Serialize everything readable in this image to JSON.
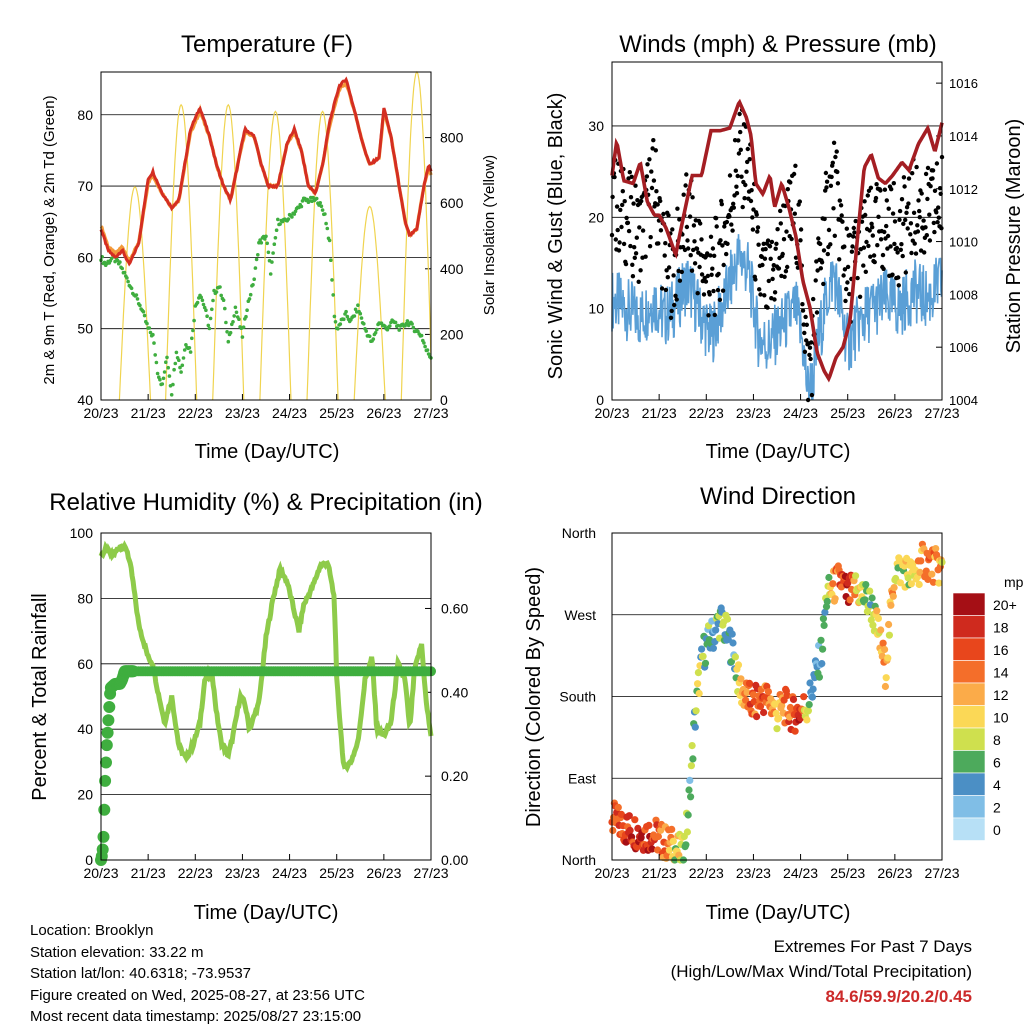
{
  "panels": {
    "temperature": {
      "title": "Temperature (F)",
      "xlabel": "Time (Day/UTC)",
      "ylabel_left": "2m & 9m T (Red, Orange) & 2m Td (Green)",
      "ylabel_right": "Solar Insolation (Yellow)"
    },
    "winds": {
      "title": "Winds (mph) & Pressure (mb)",
      "xlabel": "Time (Day/UTC)",
      "ylabel_left": "Sonic Wind & Gust (Blue, Black)",
      "ylabel_right": "Station Pressure (Maroon)"
    },
    "humidity": {
      "title": "Relative Humidity (%) & Precipitation (in)",
      "xlabel": "Time (Day/UTC)",
      "ylabel_left": "Percent & Total Rainfall"
    },
    "direction": {
      "title": "Wind Direction",
      "xlabel": "Time (Day/UTC)",
      "ylabel_left": "Direction (Colored By Speed)",
      "legend_title": "mph"
    }
  },
  "info": {
    "location": "Location: Brooklyn",
    "elevation": "Station elevation: 33.22 m",
    "latlon": "Station lat/lon: 40.6318; -73.9537",
    "created": "Figure created on Wed, 2025-08-27, at 23:56 UTC",
    "recent": "Most recent data timestamp: 2025/08/27 23:15:00"
  },
  "extremes": {
    "line1": "Extremes For Past 7 Days",
    "line2": "(High/Low/Max Wind/Total Precipitation)",
    "values": "84.6/59.9/20.2/0.45",
    "value_color": "#cc2a2a"
  },
  "chart_data": [
    {
      "type": "line",
      "id": "temperature",
      "title": "Temperature (F)",
      "xlabel": "Time (Day/UTC)",
      "x_ticks": [
        "20/23",
        "21/23",
        "22/23",
        "23/23",
        "24/23",
        "25/23",
        "26/23",
        "27/23"
      ],
      "xlim": [
        0,
        7
      ],
      "ylim": [
        40,
        86
      ],
      "y_ticks": [
        40,
        50,
        60,
        70,
        80
      ],
      "y2lim": [
        0,
        1000
      ],
      "y2_ticks": [
        0,
        200,
        400,
        600,
        800
      ],
      "grid": true,
      "series": [
        {
          "role": "t2m",
          "color": "#d42e22",
          "x": [
            0,
            0.15,
            0.3,
            0.45,
            0.6,
            0.8,
            1.0,
            1.1,
            1.3,
            1.5,
            1.65,
            1.9,
            2.1,
            2.3,
            2.45,
            2.6,
            2.75,
            2.9,
            3.05,
            3.25,
            3.4,
            3.55,
            3.75,
            3.95,
            4.1,
            4.25,
            4.4,
            4.55,
            4.7,
            4.85,
            5.05,
            5.2,
            5.4,
            5.55,
            5.7,
            5.9,
            6.0,
            6.15,
            6.3,
            6.45,
            6.55,
            6.7,
            6.85,
            6.95,
            7.0
          ],
          "values": [
            64,
            61,
            60,
            61,
            59,
            62,
            71,
            72,
            69,
            67,
            68,
            78,
            81,
            77,
            73,
            70,
            68,
            73,
            78,
            77,
            73,
            70,
            70,
            76,
            78,
            75,
            70,
            69,
            73,
            79,
            84,
            85,
            80,
            76,
            73,
            74,
            81,
            77,
            71,
            65,
            63,
            64,
            70,
            73,
            72
          ]
        },
        {
          "role": "t9m",
          "color": "#f39a3a",
          "x": [
            0,
            0.15,
            0.3,
            0.45,
            0.6,
            0.8,
            1.0,
            1.1,
            1.3,
            1.5,
            1.65,
            1.9,
            2.1,
            2.3,
            2.45,
            2.6,
            2.75,
            2.9,
            3.05,
            3.25,
            3.4,
            3.55,
            3.75,
            3.95,
            4.1,
            4.25,
            4.4,
            4.55,
            4.7,
            4.85,
            5.05,
            5.2,
            5.4,
            5.55,
            5.7,
            5.9,
            6.0,
            6.15,
            6.3,
            6.45,
            6.55,
            6.7,
            6.85,
            6.95,
            7.0
          ],
          "values": [
            64.5,
            61.5,
            60.5,
            61.5,
            59.5,
            62,
            70.5,
            71.5,
            69,
            67,
            68,
            77.5,
            80.5,
            77,
            73,
            70,
            68,
            73,
            77.5,
            77,
            73,
            70,
            70,
            76,
            77.5,
            75,
            70,
            69,
            73,
            78.5,
            83.5,
            84.5,
            80,
            76,
            73,
            74,
            80.5,
            77,
            71,
            65,
            63,
            64,
            70,
            72.5,
            71.5
          ]
        },
        {
          "role": "td2m",
          "color": "#3fae3f",
          "x": [
            0,
            0.1,
            0.25,
            0.4,
            0.55,
            0.7,
            0.85,
            1.0,
            1.1,
            1.2,
            1.3,
            1.4,
            1.5,
            1.6,
            1.7,
            1.8,
            1.9,
            2.0,
            2.1,
            2.2,
            2.3,
            2.4,
            2.5,
            2.6,
            2.7,
            2.85,
            3.0,
            3.1,
            3.25,
            3.35,
            3.5,
            3.6,
            3.75,
            3.9,
            4.05,
            4.2,
            4.3,
            4.45,
            4.6,
            4.75,
            4.85,
            4.95,
            5.0,
            5.2,
            5.3,
            5.45,
            5.6,
            5.75,
            5.9,
            6.05,
            6.2,
            6.35,
            6.5,
            6.65,
            6.8,
            6.9,
            7.0
          ],
          "values": [
            60,
            59,
            60,
            59,
            57,
            55,
            53,
            50,
            49,
            44,
            42,
            46,
            41,
            47,
            44,
            48,
            47,
            53,
            55,
            53,
            50,
            55,
            56,
            54,
            48,
            53,
            49,
            53,
            57,
            62,
            63,
            58,
            65,
            65,
            66,
            67,
            68,
            68,
            68,
            66,
            62,
            52,
            50,
            52,
            51,
            53,
            50,
            48,
            51,
            50,
            51,
            50,
            51,
            50,
            49,
            47,
            46
          ]
        },
        {
          "role": "solar",
          "color": "#f0d450",
          "axis": "right",
          "days_peak": [
            650,
            900,
            900,
            880,
            880,
            590,
            1000
          ],
          "peak_time": [
            0.72,
            1.7,
            2.7,
            3.7,
            4.7,
            5.7,
            6.7
          ]
        }
      ]
    },
    {
      "type": "scatter",
      "id": "winds",
      "title": "Winds (mph) & Pressure (mb)",
      "xlabel": "Time (Day/UTC)",
      "x_ticks": [
        "20/23",
        "21/23",
        "22/23",
        "23/23",
        "24/23",
        "25/23",
        "26/23",
        "27/23"
      ],
      "xlim": [
        0,
        7
      ],
      "ylim": [
        0,
        37
      ],
      "y_ticks": [
        0,
        10,
        20,
        30
      ],
      "y2lim": [
        1004,
        1016.8
      ],
      "y2_ticks": [
        1004,
        1006,
        1008,
        1010,
        1012,
        1014,
        1016
      ],
      "grid": true,
      "series": [
        {
          "role": "wind",
          "color": "#5a9fd6",
          "x": [
            0,
            0.3,
            0.6,
            0.9,
            1.1,
            1.3,
            1.6,
            1.9,
            2.1,
            2.4,
            2.7,
            2.9,
            3.1,
            3.3,
            3.6,
            3.9,
            4.05,
            4.15,
            4.25,
            4.4,
            4.55,
            4.7,
            4.85,
            5.0,
            5.2,
            5.5,
            5.8,
            6.1,
            6.4,
            6.7,
            7.0
          ],
          "values": [
            11,
            10,
            9,
            11,
            9,
            10,
            13,
            9,
            7,
            11,
            16,
            14,
            7,
            6,
            8,
            10,
            6,
            1,
            2,
            7,
            11,
            14,
            10,
            6,
            8,
            10,
            11,
            10,
            12,
            11,
            13
          ]
        },
        {
          "role": "gust",
          "color": "#000000",
          "x": [
            0,
            0.3,
            0.6,
            0.9,
            1.1,
            1.3,
            1.6,
            1.9,
            2.1,
            2.4,
            2.7,
            2.9,
            3.1,
            3.3,
            3.6,
            3.9,
            4.05,
            4.15,
            4.25,
            4.4,
            4.55,
            4.7,
            4.85,
            5.0,
            5.2,
            5.5,
            5.8,
            6.1,
            6.4,
            6.7,
            7.0
          ],
          "values": [
            22,
            20,
            18,
            24,
            16,
            14,
            20,
            15,
            13,
            18,
            27,
            25,
            14,
            12,
            17,
            21,
            13,
            3,
            6,
            15,
            20,
            24,
            19,
            13,
            16,
            18,
            19,
            18,
            21,
            20,
            22
          ]
        },
        {
          "role": "pressure",
          "color": "#a41e23",
          "axis": "right",
          "x": [
            0,
            0.1,
            0.25,
            0.45,
            0.6,
            0.75,
            0.9,
            1.0,
            1.15,
            1.35,
            1.5,
            1.7,
            1.9,
            2.1,
            2.3,
            2.5,
            2.7,
            2.85,
            2.95,
            3.05,
            3.2,
            3.35,
            3.45,
            3.6,
            3.75,
            3.9,
            4.05,
            4.2,
            4.35,
            4.5,
            4.6,
            4.75,
            4.9,
            5.05,
            5.2,
            5.35,
            5.5,
            5.65,
            5.8,
            5.95,
            6.15,
            6.3,
            6.5,
            6.7,
            6.85,
            7.0
          ],
          "values": [
            1012.5,
            1013.8,
            1012.3,
            1012.2,
            1013,
            1011.5,
            1011,
            1011,
            1010.5,
            1009.5,
            1010.8,
            1012.5,
            1012.5,
            1014.2,
            1014.2,
            1014.3,
            1015.3,
            1014.7,
            1014,
            1012.2,
            1011.8,
            1012.5,
            1011.3,
            1012.2,
            1011.3,
            1010.2,
            1008.5,
            1007.5,
            1005.8,
            1005.1,
            1004.8,
            1005.6,
            1006,
            1007,
            1010,
            1012.8,
            1013.3,
            1012.4,
            1012.2,
            1012.5,
            1013,
            1012.7,
            1013.7,
            1014.3,
            1013.4,
            1014.5
          ]
        }
      ]
    },
    {
      "type": "line",
      "id": "humidity",
      "title": "Relative Humidity (%) & Precipitation (in)",
      "xlabel": "Time (Day/UTC)",
      "x_ticks": [
        "20/23",
        "21/23",
        "22/23",
        "23/23",
        "24/23",
        "25/23",
        "26/23",
        "27/23"
      ],
      "xlim": [
        0,
        7
      ],
      "ylim": [
        0,
        100
      ],
      "y_ticks": [
        0,
        20,
        40,
        60,
        80,
        100
      ],
      "y2lim": [
        0,
        0.78
      ],
      "y2_ticks": [
        "0.00",
        "0.20",
        "0.40",
        "0.60"
      ],
      "grid": true,
      "series": [
        {
          "role": "rh",
          "color": "#8ecb4a",
          "x": [
            0,
            0.1,
            0.25,
            0.4,
            0.55,
            0.65,
            0.8,
            1.0,
            1.1,
            1.2,
            1.35,
            1.5,
            1.65,
            1.8,
            1.95,
            2.1,
            2.2,
            2.35,
            2.45,
            2.55,
            2.7,
            2.8,
            2.95,
            3.05,
            3.15,
            3.35,
            3.5,
            3.65,
            3.8,
            3.95,
            4.1,
            4.2,
            4.3,
            4.5,
            4.65,
            4.8,
            4.85,
            4.95,
            5.0,
            5.15,
            5.3,
            5.45,
            5.6,
            5.75,
            5.85,
            6.0,
            6.15,
            6.3,
            6.45,
            6.55,
            6.65,
            6.8,
            6.9,
            7.0
          ],
          "values": [
            93,
            95,
            93,
            96,
            95,
            88,
            72,
            62,
            60,
            52,
            42,
            50,
            35,
            31,
            35,
            42,
            55,
            58,
            45,
            36,
            32,
            38,
            50,
            48,
            40,
            48,
            68,
            80,
            89,
            85,
            76,
            70,
            78,
            84,
            90,
            91,
            88,
            80,
            55,
            28,
            30,
            36,
            55,
            62,
            40,
            38,
            42,
            60,
            55,
            40,
            58,
            66,
            48,
            38
          ]
        },
        {
          "role": "precip",
          "color": "#3fae3f",
          "axis": "right",
          "x": [
            0,
            0.02,
            0.04,
            0.06,
            0.08,
            0.1,
            0.12,
            0.15,
            0.2,
            0.3,
            0.4,
            0.45,
            0.5,
            0.6,
            0.7,
            7.0
          ],
          "values": [
            0,
            0.01,
            0.03,
            0.07,
            0.17,
            0.22,
            0.27,
            0.32,
            0.41,
            0.42,
            0.42,
            0.43,
            0.45,
            0.45,
            0.45,
            0.45
          ]
        }
      ]
    },
    {
      "type": "scatter",
      "id": "direction",
      "title": "Wind Direction",
      "xlabel": "Time (Day/UTC)",
      "x_ticks": [
        "20/23",
        "21/23",
        "22/23",
        "23/23",
        "24/23",
        "25/23",
        "26/23",
        "27/23"
      ],
      "xlim": [
        0,
        7
      ],
      "y_ticks": [
        "North",
        "East",
        "South",
        "West",
        "North"
      ],
      "ylim": [
        0,
        360
      ],
      "grid": true,
      "series": [
        {
          "role": "direction",
          "x": [
            0,
            0.3,
            0.6,
            0.9,
            1.1,
            1.3,
            1.5,
            1.6,
            1.75,
            1.85,
            1.95,
            2.1,
            2.3,
            2.5,
            2.6,
            2.7,
            2.85,
            3.0,
            3.2,
            3.35,
            3.5,
            3.65,
            3.85,
            4.0,
            4.15,
            4.3,
            4.45,
            4.55,
            4.7,
            4.85,
            5.0,
            5.15,
            5.35,
            5.5,
            5.65,
            5.8,
            6.0,
            6.2,
            6.4,
            6.6,
            6.8,
            7.0
          ],
          "values": [
            45,
            35,
            30,
            28,
            20,
            15,
            5,
            40,
            150,
            200,
            230,
            245,
            265,
            240,
            225,
            190,
            180,
            170,
            180,
            175,
            160,
            170,
            160,
            165,
            170,
            200,
            230,
            290,
            300,
            310,
            290,
            300,
            290,
            280,
            250,
            210,
            320,
            320,
            310,
            330,
            325,
            320
          ],
          "speeds": [
            16,
            17,
            18,
            16,
            14,
            10,
            8,
            6,
            5,
            8,
            6,
            4,
            6,
            5,
            4,
            10,
            14,
            15,
            16,
            14,
            10,
            14,
            16,
            18,
            6,
            2,
            4,
            6,
            12,
            16,
            18,
            12,
            8,
            6,
            10,
            12,
            10,
            8,
            10,
            12,
            14,
            10
          ]
        }
      ],
      "legend": {
        "title": "mph",
        "labels": [
          "20+",
          "18",
          "16",
          "14",
          "12",
          "10",
          "8",
          "6",
          "4",
          "2",
          "0"
        ],
        "colors": [
          "#a50f15",
          "#cf2a1e",
          "#e8461c",
          "#f46e2a",
          "#fbab49",
          "#fbd856",
          "#cfe04e",
          "#4daa5c",
          "#4b8fc5",
          "#80bee6",
          "#b7e0f6"
        ]
      }
    }
  ]
}
